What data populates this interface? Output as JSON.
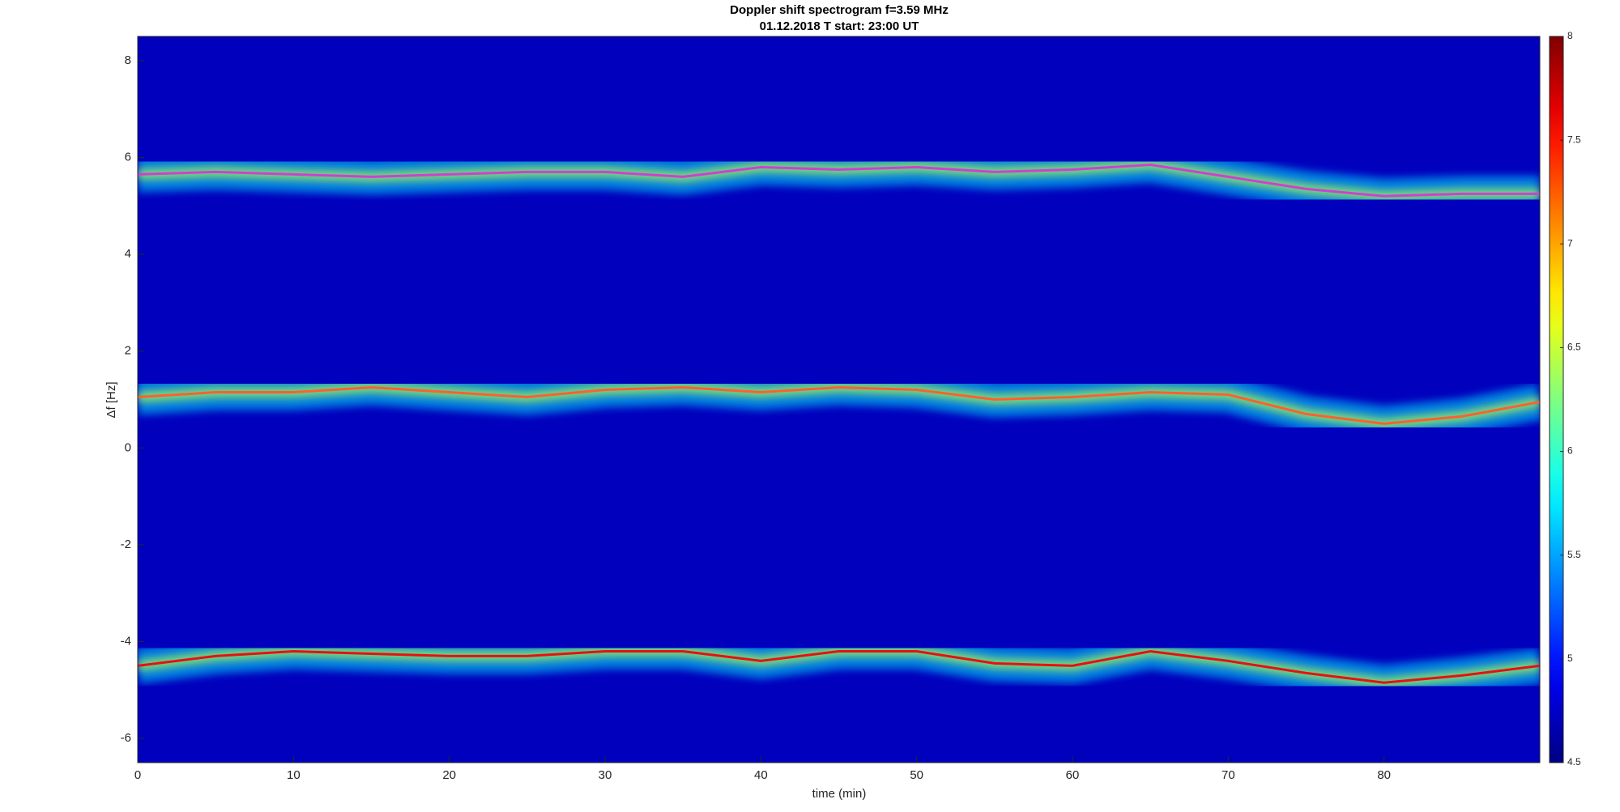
{
  "chart_data": {
    "type": "spectrogram",
    "title": "Doppler shift spectrogram f=3.59 MHz",
    "subtitle": "01.12.2018   T start: 23:00 UT",
    "xlabel": "time (min)",
    "ylabel": "Δf [Hz]",
    "xlim": [
      0,
      90
    ],
    "xticks": [
      0,
      10,
      20,
      30,
      40,
      50,
      60,
      70,
      80
    ],
    "ylim": [
      -6.5,
      8.5
    ],
    "yticks": [
      -6,
      -4,
      -2,
      0,
      2,
      4,
      6,
      8
    ],
    "colormap": "jet",
    "clim": [
      4.5,
      8
    ],
    "cticks": [
      4.5,
      5,
      5.5,
      6,
      6.5,
      7,
      7.5,
      8
    ],
    "x": [
      0,
      5,
      10,
      15,
      20,
      25,
      30,
      35,
      40,
      45,
      50,
      55,
      60,
      65,
      70,
      75,
      80,
      85,
      90
    ],
    "series": [
      {
        "color": "#d040d0",
        "values": [
          5.65,
          5.7,
          5.65,
          5.6,
          5.65,
          5.7,
          5.7,
          5.6,
          5.8,
          5.75,
          5.8,
          5.7,
          5.75,
          5.85,
          5.6,
          5.35,
          5.2,
          5.25,
          5.25
        ]
      },
      {
        "color": "#ff6030",
        "values": [
          1.05,
          1.15,
          1.15,
          1.25,
          1.15,
          1.05,
          1.2,
          1.25,
          1.15,
          1.25,
          1.2,
          1.0,
          1.05,
          1.15,
          1.1,
          0.7,
          0.5,
          0.65,
          0.95
        ]
      },
      {
        "color": "#e81010",
        "values": [
          -4.5,
          -4.3,
          -4.2,
          -4.25,
          -4.3,
          -4.3,
          -4.2,
          -4.2,
          -4.4,
          -4.2,
          -4.2,
          -4.45,
          -4.5,
          -4.2,
          -4.4,
          -4.65,
          -4.85,
          -4.7,
          -4.5
        ]
      }
    ]
  }
}
